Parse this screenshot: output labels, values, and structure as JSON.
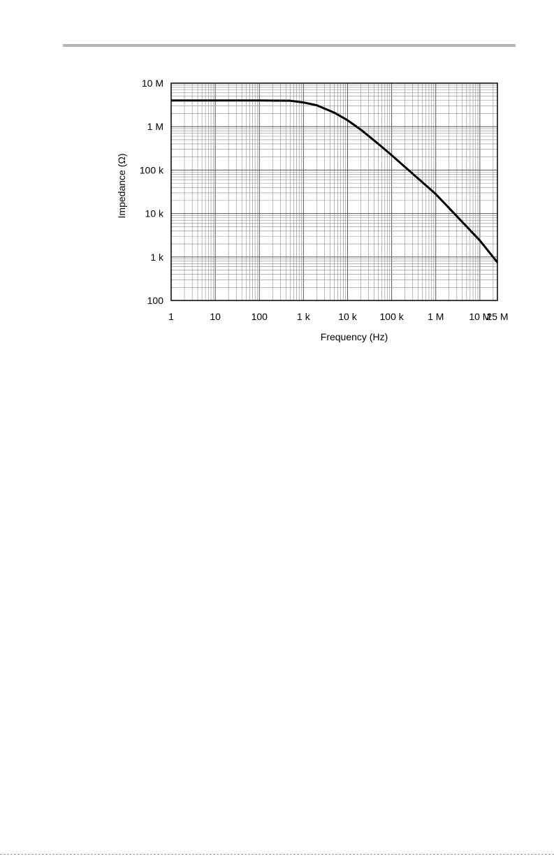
{
  "chart_data": {
    "type": "line",
    "title": "",
    "xlabel": "Frequency (Hz)",
    "ylabel": "Impedance (Ω)",
    "xscale": "log",
    "yscale": "log",
    "xlim": [
      1,
      25000000
    ],
    "ylim": [
      100,
      10000000
    ],
    "grid": true,
    "xticks": [
      {
        "value": 1,
        "label": "1"
      },
      {
        "value": 10,
        "label": "10"
      },
      {
        "value": 100,
        "label": "100"
      },
      {
        "value": 1000,
        "label": "1 k"
      },
      {
        "value": 10000,
        "label": "10 k"
      },
      {
        "value": 100000,
        "label": "100 k"
      },
      {
        "value": 1000000,
        "label": "1 M"
      },
      {
        "value": 10000000,
        "label": "10 M"
      },
      {
        "value": 25000000,
        "label": "25 M"
      }
    ],
    "yticks": [
      {
        "value": 100,
        "label": "100"
      },
      {
        "value": 1000,
        "label": "1 k"
      },
      {
        "value": 10000,
        "label": "10 k"
      },
      {
        "value": 100000,
        "label": "100 k"
      },
      {
        "value": 1000000,
        "label": "1 M"
      },
      {
        "value": 10000000,
        "label": "10 M"
      }
    ],
    "series": [
      {
        "color": "#000000",
        "points": [
          [
            1,
            4000000
          ],
          [
            100,
            4000000
          ],
          [
            500,
            3950000
          ],
          [
            1000,
            3600000
          ],
          [
            2000,
            3100000
          ],
          [
            5000,
            2100000
          ],
          [
            10000,
            1400000
          ],
          [
            20000,
            850000
          ],
          [
            50000,
            400000
          ],
          [
            100000,
            220000
          ],
          [
            1000000,
            28000
          ],
          [
            10000000,
            2400
          ],
          [
            25000000,
            750
          ]
        ]
      }
    ]
  }
}
